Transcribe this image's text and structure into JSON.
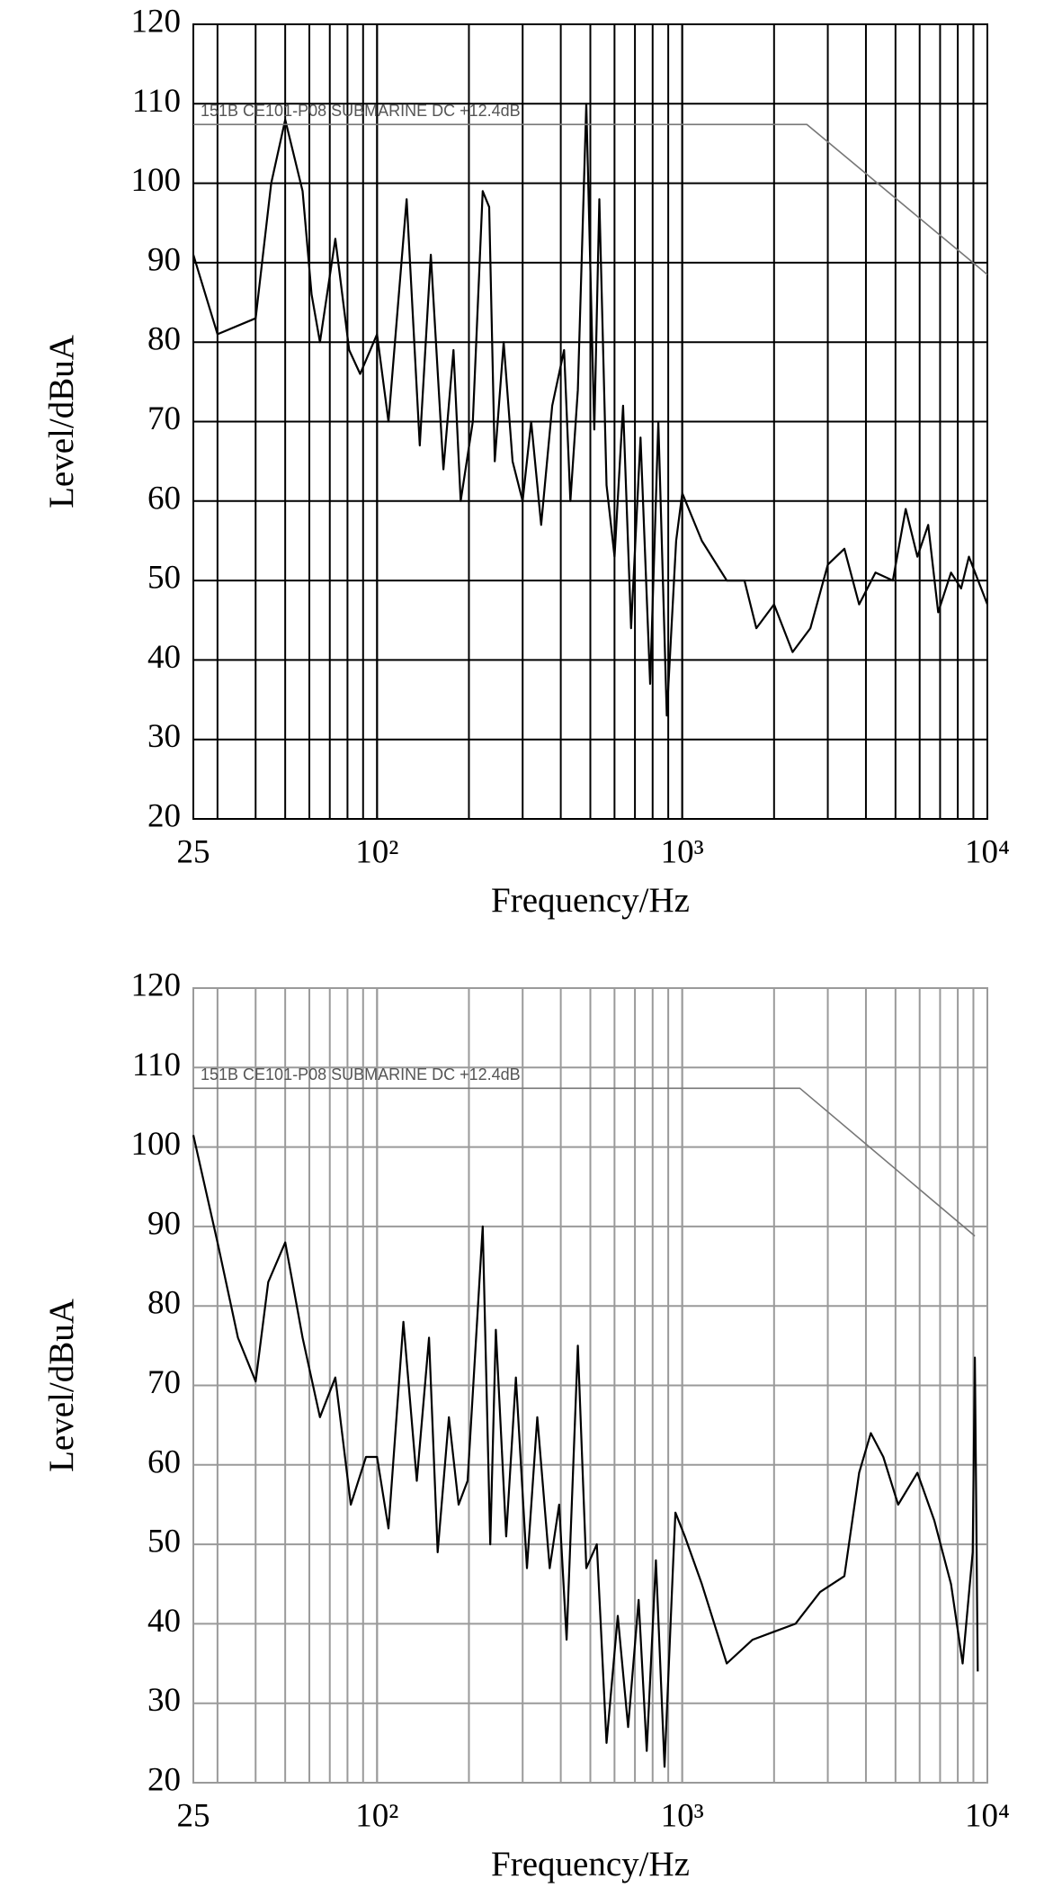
{
  "chart_data": [
    {
      "type": "line",
      "xlabel": "Frequency/Hz",
      "ylabel": "Level/dBuA",
      "xscale": "log",
      "grid": true,
      "grid_color": "#000000",
      "xlim": [
        25,
        10000
      ],
      "ylim": [
        20,
        120
      ],
      "xticks": [
        25,
        {
          "value": 100,
          "label": "10²"
        },
        {
          "value": 1000,
          "label": "10³"
        },
        {
          "value": 10000,
          "label": "10⁴"
        }
      ],
      "x_grid": [
        30,
        40,
        50,
        60,
        70,
        80,
        90,
        100,
        200,
        300,
        400,
        500,
        600,
        700,
        800,
        900,
        1000,
        2000,
        3000,
        4000,
        5000,
        6000,
        7000,
        8000,
        9000
      ],
      "yticks": [
        20,
        30,
        40,
        50,
        60,
        70,
        80,
        90,
        100,
        110,
        120
      ],
      "annotation": "151B CE101-P08 SUBMARINE DC +12.4dB",
      "series": [
        {
          "color": "#000000",
          "x": [
            25,
            30,
            40,
            45,
            50,
            57,
            61,
            65,
            73,
            81,
            88,
            100,
            109,
            125,
            138,
            150,
            165,
            178,
            188,
            206,
            222,
            233,
            243,
            260,
            278,
            300,
            320,
            345,
            375,
            410,
            430,
            455,
            485,
            515,
            535,
            565,
            600,
            640,
            680,
            730,
            785,
            835,
            890,
            955,
            1000,
            1160,
            1400,
            1600,
            1750,
            2000,
            2300,
            2630,
            3000,
            3400,
            3800,
            4300,
            4900,
            5400,
            5900,
            6400,
            6900,
            7600,
            8200,
            8700,
            10000
          ],
          "values": [
            91,
            81,
            83,
            100,
            108,
            99,
            86,
            80,
            93,
            79,
            76,
            81,
            70,
            98,
            67,
            91,
            64,
            79,
            60,
            70,
            99,
            97,
            65,
            80,
            65,
            60,
            70,
            57,
            72,
            79,
            60,
            74,
            110,
            69,
            98,
            62,
            53,
            72,
            44,
            68,
            37,
            70,
            33,
            55,
            61,
            55,
            50,
            50,
            44,
            47,
            41,
            44,
            52,
            54,
            47,
            51,
            50,
            59,
            53,
            57,
            46,
            51,
            49,
            53,
            47
          ]
        },
        {
          "color": "#777777",
          "x": [
            25,
            2560,
            10000
          ],
          "values": [
            107.4,
            107.4,
            88.5
          ]
        }
      ]
    },
    {
      "type": "line",
      "xlabel": "Frequency/Hz",
      "ylabel": "Level/dBuA",
      "xscale": "log",
      "grid": true,
      "grid_color": "#9a9a9a",
      "xlim": [
        25,
        10000
      ],
      "ylim": [
        20,
        120
      ],
      "xticks": [
        25,
        {
          "value": 100,
          "label": "10²"
        },
        {
          "value": 1000,
          "label": "10³"
        },
        {
          "value": 10000,
          "label": "10⁴"
        }
      ],
      "x_grid": [
        30,
        40,
        50,
        60,
        70,
        80,
        90,
        100,
        200,
        300,
        400,
        500,
        600,
        700,
        800,
        900,
        1000,
        2000,
        3000,
        4000,
        5000,
        6000,
        7000,
        8000,
        9000
      ],
      "yticks": [
        20,
        30,
        40,
        50,
        60,
        70,
        80,
        90,
        100,
        110,
        120
      ],
      "annotation": "151B CE101-P08 SUBMARINE DC +12.4dB",
      "series": [
        {
          "color": "#000000",
          "x": [
            25,
            30,
            35,
            40,
            44,
            50,
            57,
            65,
            73,
            82,
            92,
            100,
            109,
            122,
            135,
            148,
            158,
            172,
            185,
            198,
            222,
            235,
            245,
            265,
            285,
            310,
            335,
            368,
            395,
            418,
            455,
            485,
            525,
            565,
            615,
            665,
            720,
            765,
            820,
            875,
            935,
            950,
            1020,
            1160,
            1400,
            1700,
            2000,
            2350,
            2830,
            3400,
            3800,
            4150,
            4560,
            5100,
            5900,
            6700,
            7600,
            8300,
            8950,
            9100,
            9300
          ],
          "values": [
            101.5,
            88,
            76,
            70.5,
            83,
            88,
            76,
            66,
            71,
            55,
            61,
            61,
            52,
            78,
            58,
            76,
            49,
            66,
            55,
            58,
            90,
            50,
            77,
            51,
            71,
            47,
            66,
            47,
            55,
            38,
            75,
            47,
            50,
            25,
            41,
            27,
            43,
            24,
            48,
            22,
            48,
            54,
            51,
            45,
            35,
            38,
            39,
            40,
            44,
            46,
            59,
            64,
            61,
            55,
            59,
            53,
            45,
            35,
            49,
            73.5,
            34
          ]
        },
        {
          "color": "#777777",
          "x": [
            25,
            2430,
            9100
          ],
          "values": [
            107.4,
            107.4,
            88.8
          ]
        }
      ]
    }
  ]
}
